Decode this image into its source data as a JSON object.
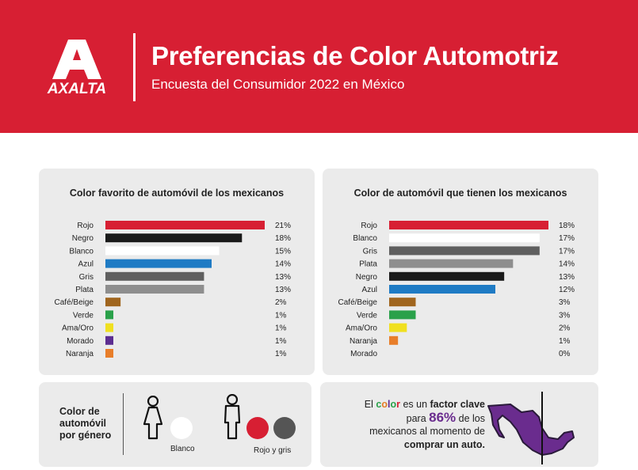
{
  "header": {
    "brand": "AXALTA",
    "title": "Preferencias de Color Automotriz",
    "subtitle": "Encuesta del Consumidor 2022 en México",
    "bg_color": "#d71f33"
  },
  "chart_data": [
    {
      "type": "bar",
      "orientation": "horizontal",
      "title": "Color favorito de automóvil de los mexicanos",
      "categories": [
        "Rojo",
        "Negro",
        "Blanco",
        "Azul",
        "Gris",
        "Plata",
        "Café/Beige",
        "Verde",
        "Ama/Oro",
        "Morado",
        "Naranja"
      ],
      "values": [
        21,
        18,
        15,
        14,
        13,
        13,
        2,
        1,
        1,
        1,
        1
      ],
      "labels": [
        "21%",
        "18%",
        "15%",
        "14%",
        "13%",
        "13%",
        "2%",
        "1%",
        "1%",
        "1%",
        "1%"
      ],
      "colors": [
        "#d71f33",
        "#1a1a1a",
        "#ffffff",
        "#1f7bc4",
        "#5f5f5f",
        "#8e8e8e",
        "#a0651e",
        "#2aa14a",
        "#f0e020",
        "#5c2d91",
        "#e87e2a"
      ],
      "xlim": [
        0,
        21
      ]
    },
    {
      "type": "bar",
      "orientation": "horizontal",
      "title": "Color de automóvil que tienen los mexicanos",
      "categories": [
        "Rojo",
        "Blanco",
        "Gris",
        "Plata",
        "Negro",
        "Azul",
        "Café/Beige",
        "Verde",
        "Ama/Oro",
        "Naranja",
        "Morado"
      ],
      "values": [
        18,
        17,
        17,
        14,
        13,
        12,
        3,
        3,
        2,
        1,
        0
      ],
      "labels": [
        "18%",
        "17%",
        "17%",
        "14%",
        "13%",
        "12%",
        "3%",
        "3%",
        "2%",
        "1%",
        "0%"
      ],
      "colors": [
        "#d71f33",
        "#ffffff",
        "#5f5f5f",
        "#8e8e8e",
        "#1a1a1a",
        "#1f7bc4",
        "#a0651e",
        "#2aa14a",
        "#f0e020",
        "#e87e2a",
        "#5c2d91"
      ],
      "xlim": [
        0,
        18
      ]
    }
  ],
  "gender": {
    "label": "Color de automóvil por género",
    "female_caption": "Blanco",
    "male_caption": "Rojo y gris",
    "female_colors": [
      "#ffffff"
    ],
    "male_colors": [
      "#d71f33",
      "#555555"
    ]
  },
  "fact": {
    "p1": "El ",
    "c1": "c",
    "c2": "o",
    "c3": "l",
    "c4": "o",
    "c5": "r",
    "p2": " es un ",
    "bold1": "factor clave",
    "p3": "para ",
    "pct": "86%",
    "p4": " de los",
    "p5": "mexicanos al momento de",
    "bold2": "comprar un auto."
  }
}
